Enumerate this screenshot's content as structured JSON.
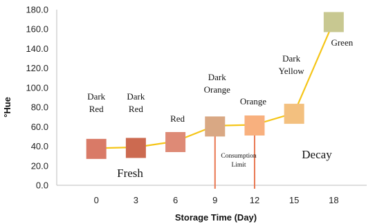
{
  "chart_data": {
    "type": "line",
    "xlabel": "Storage Time (Day)",
    "ylabel": "°Hue",
    "x_ticks": [
      "0",
      "3",
      "6",
      "9",
      "12",
      "15",
      "18"
    ],
    "y_ticks": [
      "0.0",
      "20.0",
      "40.0",
      "60.0",
      "80.0",
      "100.0",
      "120.0",
      "140.0",
      "160.0",
      "180.0"
    ],
    "xlim": [
      -3,
      20.5
    ],
    "ylim": [
      0,
      180
    ],
    "line_color": "#f5c518",
    "series": [
      {
        "x": [
          0,
          3,
          6,
          9,
          12,
          15,
          18
        ],
        "y": [
          38,
          39,
          45,
          61,
          62,
          74,
          168
        ]
      }
    ],
    "markers": [
      {
        "label": [
          "Dark",
          "Red"
        ],
        "color": "#d97a67"
      },
      {
        "label": [
          "Dark",
          "Red"
        ],
        "color": "#cc6a50"
      },
      {
        "label": [
          "Red"
        ],
        "color": "#de8a76"
      },
      {
        "label": [
          "Dark",
          "Orange"
        ],
        "color": "#d9a884"
      },
      {
        "label": [
          "Orange"
        ],
        "color": "#f8b07e"
      },
      {
        "label": [
          "Dark",
          "Yellow"
        ],
        "color": "#f3c07f"
      },
      {
        "label": [
          "Green"
        ],
        "color": "#c8c891"
      }
    ],
    "annotations": {
      "fresh": "Fresh",
      "decay": "Decay",
      "consumption": [
        "Consumption",
        "Limit"
      ],
      "marker_line_color": "#e8764f"
    }
  }
}
